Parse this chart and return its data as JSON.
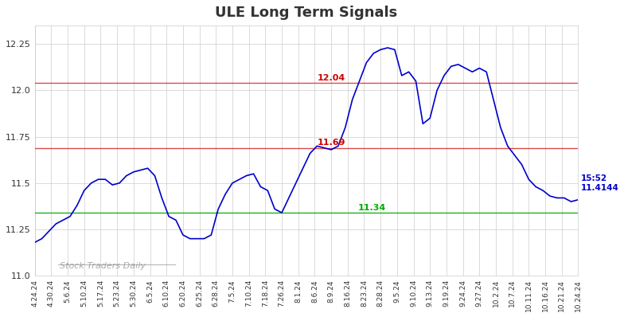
{
  "title": "ULE Long Term Signals",
  "ylim": [
    11.0,
    12.35
  ],
  "yticks": [
    11.0,
    11.25,
    11.5,
    11.75,
    12.0,
    12.25
  ],
  "red_line1": 12.04,
  "red_line2": 11.69,
  "green_line": 11.34,
  "annotation_red1": "12.04",
  "annotation_red2": "11.69",
  "annotation_green": "11.34",
  "annotation_time": "15:52",
  "annotation_price": "11.4144",
  "watermark": "Stock Traders Daily",
  "line_color": "#0000cc",
  "red_color": "#cc0000",
  "green_color": "#00aa00",
  "watermark_color": "#888888",
  "background_color": "#ffffff",
  "grid_color": "#cccccc",
  "xtick_labels": [
    "4.24.24",
    "4.30.24",
    "5.6.24",
    "5.10.24",
    "5.17.24",
    "5.23.24",
    "5.30.24",
    "6.5.24",
    "6.10.24",
    "6.20.24",
    "6.25.24",
    "6.28.24",
    "7.5.24",
    "7.10.24",
    "7.18.24",
    "7.26.24",
    "8.1.24",
    "8.6.24",
    "8.9.24",
    "8.16.24",
    "8.23.24",
    "8.28.24",
    "9.5.24",
    "9.10.24",
    "9.13.24",
    "9.19.24",
    "9.24.24",
    "9.27.24",
    "10.2.24",
    "10.7.24",
    "10.11.24",
    "10.16.24",
    "10.21.24",
    "10.24.24"
  ],
  "price_points": [
    11.18,
    11.2,
    11.24,
    11.28,
    11.3,
    11.32,
    11.38,
    11.46,
    11.5,
    11.52,
    11.52,
    11.49,
    11.5,
    11.54,
    11.56,
    11.57,
    11.58,
    11.54,
    11.42,
    11.32,
    11.3,
    11.22,
    11.2,
    11.2,
    11.2,
    11.22,
    11.36,
    11.44,
    11.5,
    11.52,
    11.54,
    11.55,
    11.48,
    11.46,
    11.36,
    11.34,
    11.42,
    11.5,
    11.58,
    11.66,
    11.7,
    11.69,
    11.68,
    11.7,
    11.8,
    11.95,
    12.05,
    12.15,
    12.2,
    12.22,
    12.23,
    12.22,
    12.08,
    12.1,
    12.05,
    11.82,
    11.85,
    12.0,
    12.08,
    12.13,
    12.14,
    12.12,
    12.1,
    12.12,
    12.1,
    11.95,
    11.8,
    11.7,
    11.65,
    11.6,
    11.52,
    11.48,
    11.46,
    11.43,
    11.42,
    11.42,
    11.4,
    11.41
  ]
}
